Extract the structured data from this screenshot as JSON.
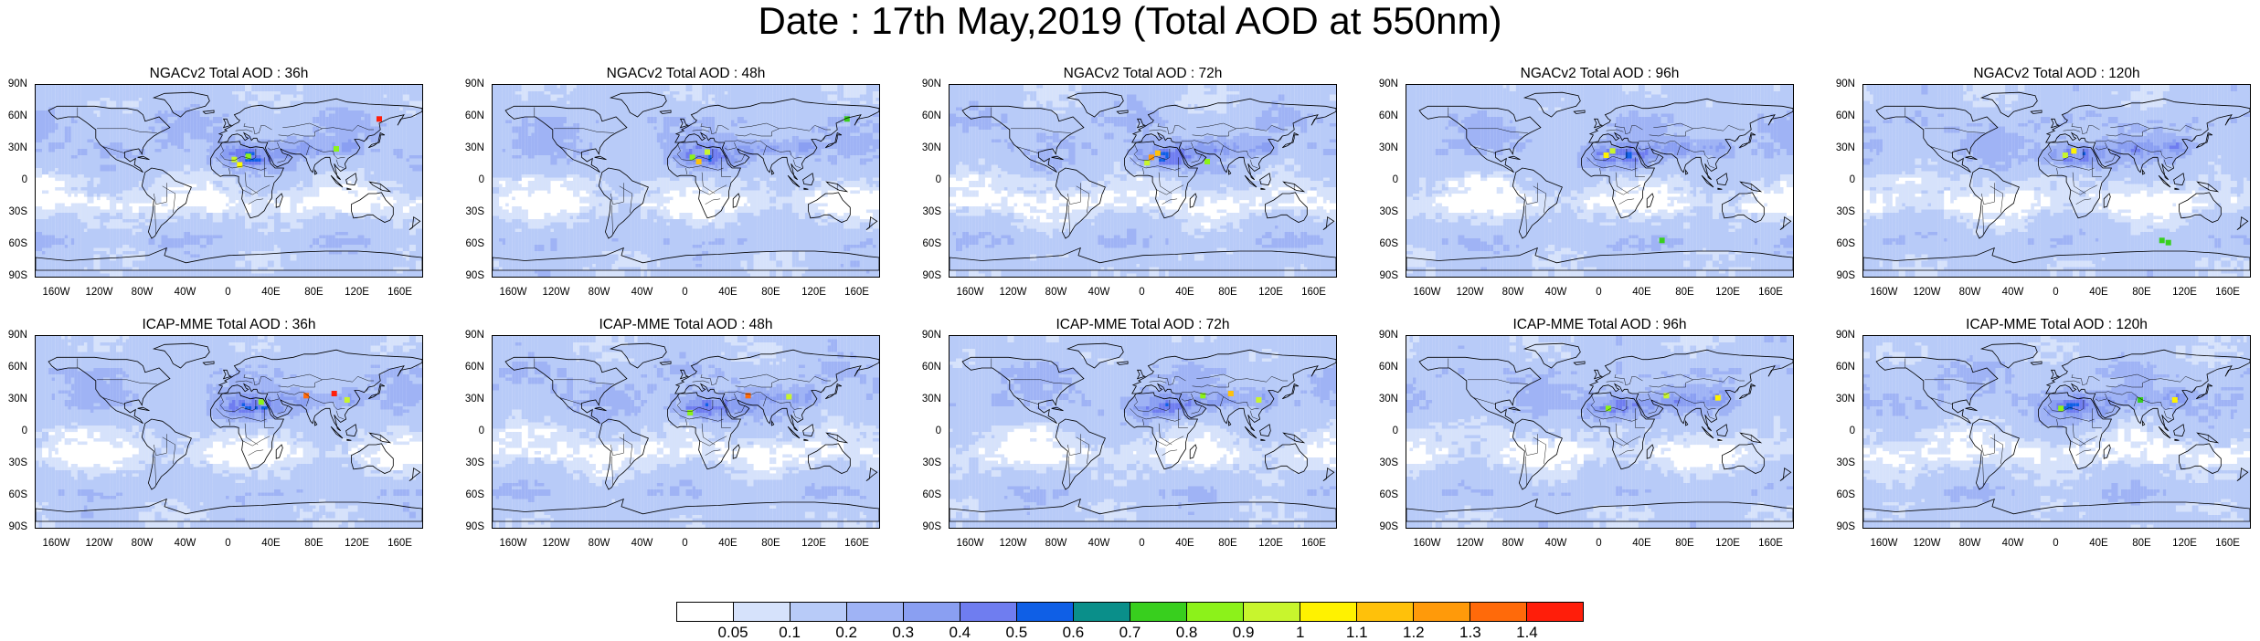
{
  "title": "Date : 17th May,2019 (Total AOD at 550nm)",
  "lat_labels": [
    "90N",
    "60N",
    "30N",
    "0",
    "30S",
    "60S",
    "90S"
  ],
  "lon_labels": [
    "160W",
    "120W",
    "80W",
    "40W",
    "0",
    "40E",
    "80E",
    "120E",
    "160E"
  ],
  "panels": [
    {
      "title": "NGACv2 Total AOD : 36h",
      "model": "NGACv2",
      "lead": "36h"
    },
    {
      "title": "NGACv2 Total AOD : 48h",
      "model": "NGACv2",
      "lead": "48h"
    },
    {
      "title": "NGACv2 Total AOD : 72h",
      "model": "NGACv2",
      "lead": "72h"
    },
    {
      "title": "NGACv2 Total AOD : 96h",
      "model": "NGACv2",
      "lead": "96h"
    },
    {
      "title": "NGACv2 Total AOD : 120h",
      "model": "NGACv2",
      "lead": "120h"
    },
    {
      "title": "ICAP-MME Total AOD : 36h",
      "model": "ICAP-MME",
      "lead": "36h"
    },
    {
      "title": "ICAP-MME Total AOD : 48h",
      "model": "ICAP-MME",
      "lead": "48h"
    },
    {
      "title": "ICAP-MME Total AOD : 72h",
      "model": "ICAP-MME",
      "lead": "72h"
    },
    {
      "title": "ICAP-MME Total AOD : 96h",
      "model": "ICAP-MME",
      "lead": "96h"
    },
    {
      "title": "ICAP-MME Total AOD : 120h",
      "model": "ICAP-MME",
      "lead": "120h"
    }
  ],
  "colorbar": {
    "labels": [
      "0.05",
      "0.1",
      "0.2",
      "0.3",
      "0.4",
      "0.5",
      "0.6",
      "0.7",
      "0.8",
      "0.9",
      "1",
      "1.1",
      "1.2",
      "1.3",
      "1.4"
    ],
    "colors": [
      "#ffffff",
      "#d6e2fb",
      "#b8cbf8",
      "#9fb3f5",
      "#8a9ff2",
      "#6f7df0",
      "#0f5fe6",
      "#0a8f8a",
      "#38cf1e",
      "#8cf21a",
      "#c8f52d",
      "#fff200",
      "#ffc10a",
      "#ff9a0a",
      "#ff6a0a",
      "#ff1e0a"
    ]
  }
}
